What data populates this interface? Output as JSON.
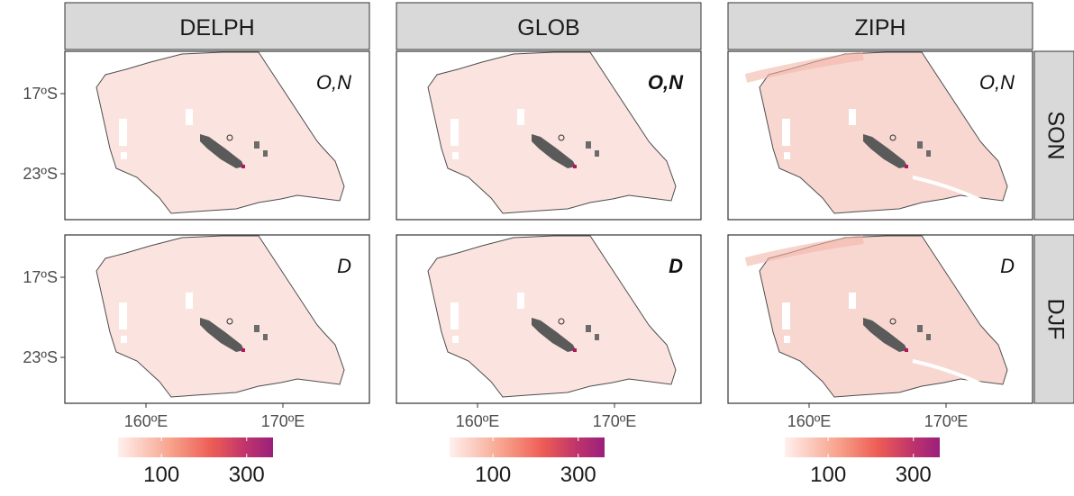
{
  "chart_data": {
    "type": "heatmap",
    "facets": {
      "columns": [
        "DELPH",
        "GLOB",
        "ZIPH"
      ],
      "rows": [
        "SON",
        "DJF"
      ]
    },
    "panel_labels": [
      [
        "O,N",
        "O,N",
        "O,N"
      ],
      [
        "D",
        "D",
        "D"
      ]
    ],
    "bold_panel_labels_column": "GLOB",
    "y_ticks": [
      "17ºS",
      "23ºS"
    ],
    "x_ticks": [
      "160ºE",
      "170ºE"
    ],
    "colorbar": {
      "tick_labels": [
        "100",
        "300"
      ],
      "colors": [
        "#fff0ed",
        "#f7a08a",
        "#ee5d55",
        "#c0346b",
        "#9a1f7c"
      ]
    },
    "colors": {
      "strip_fill": "#d9d9d9",
      "region_fill": "#fbe3df",
      "region_stroke": "#4d4d4d",
      "land": "#5a5a5a"
    }
  }
}
